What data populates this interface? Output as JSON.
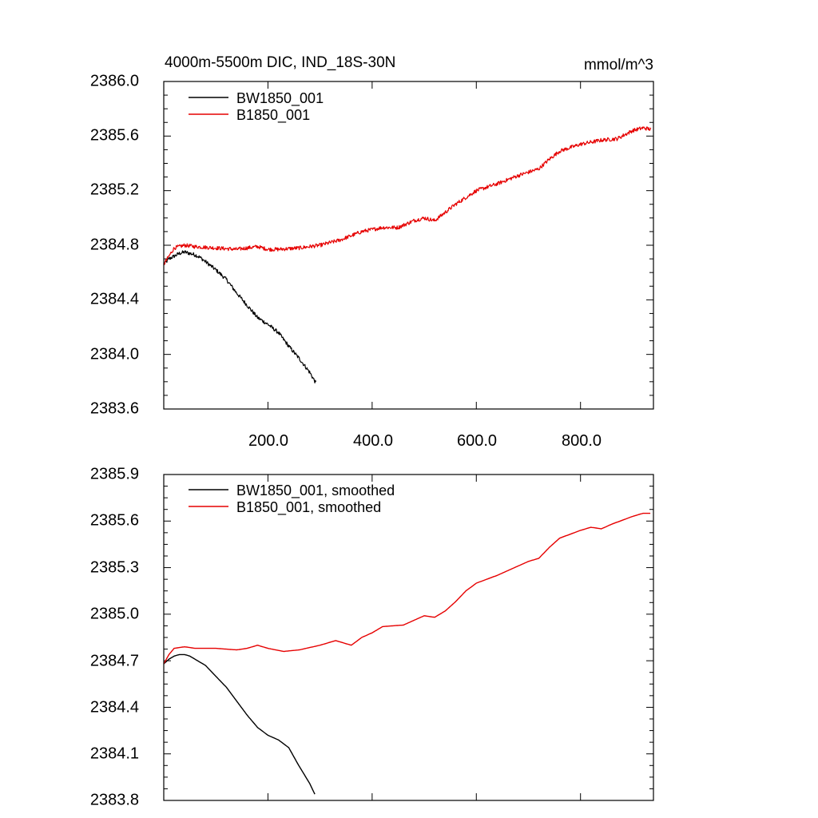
{
  "chart_data": [
    {
      "type": "line",
      "title": "4000m-5500m DIC, IND_18S-30N",
      "units_label": "mmol/m^3",
      "xlabel": "",
      "ylabel": "",
      "xlim": [
        0,
        940
      ],
      "ylim": [
        2383.6,
        2386.0
      ],
      "yticks": [
        2383.6,
        2384.0,
        2384.4,
        2384.8,
        2385.2,
        2385.6,
        2386.0
      ],
      "ytick_labels": [
        "2383.6",
        "2384.0",
        "2384.4",
        "2384.8",
        "2385.2",
        "2385.6",
        "2386.0"
      ],
      "xticks": [
        200,
        400,
        600,
        800
      ],
      "xtick_labels": [
        "200.0",
        "400.0",
        "600.0",
        "800.0"
      ],
      "legend_position": "top-left",
      "series": [
        {
          "name": "BW1850_001",
          "color": "#000000",
          "noisy": true,
          "x": [
            0,
            10,
            20,
            30,
            40,
            50,
            60,
            70,
            80,
            100,
            120,
            140,
            160,
            180,
            200,
            220,
            240,
            260,
            270,
            280,
            292
          ],
          "values": [
            2384.66,
            2384.7,
            2384.72,
            2384.74,
            2384.75,
            2384.74,
            2384.73,
            2384.71,
            2384.68,
            2384.62,
            2384.55,
            2384.45,
            2384.36,
            2384.27,
            2384.22,
            2384.16,
            2384.06,
            2383.97,
            2383.92,
            2383.87,
            2383.79
          ]
        },
        {
          "name": "B1850_001",
          "color": "#e60000",
          "noisy": true,
          "x": [
            0,
            20,
            40,
            60,
            100,
            140,
            180,
            200,
            220,
            260,
            300,
            340,
            380,
            420,
            450,
            480,
            500,
            520,
            560,
            600,
            640,
            680,
            720,
            740,
            760,
            800,
            840,
            870,
            900,
            920,
            935
          ],
          "values": [
            2384.66,
            2384.78,
            2384.8,
            2384.79,
            2384.78,
            2384.77,
            2384.79,
            2384.77,
            2384.77,
            2384.78,
            2384.8,
            2384.84,
            2384.9,
            2384.93,
            2384.93,
            2384.98,
            2385.0,
            2384.98,
            2385.1,
            2385.2,
            2385.25,
            2385.31,
            2385.36,
            2385.43,
            2385.49,
            2385.54,
            2385.57,
            2385.58,
            2385.64,
            2385.66,
            2385.65
          ]
        }
      ]
    },
    {
      "type": "line",
      "title": "",
      "xlabel": "",
      "ylabel": "",
      "xlim": [
        0,
        940
      ],
      "ylim": [
        2383.8,
        2385.9
      ],
      "yticks": [
        2383.8,
        2384.1,
        2384.4,
        2384.7,
        2385.0,
        2385.3,
        2385.6,
        2385.9
      ],
      "ytick_labels": [
        "2383.8",
        "2384.1",
        "2384.4",
        "2384.7",
        "2385.0",
        "2385.3",
        "2385.6",
        "2385.9"
      ],
      "xticks": [
        200,
        400,
        600,
        800
      ],
      "xtick_labels": [],
      "legend_position": "top-left",
      "series": [
        {
          "name": "BW1850_001, smoothed",
          "color": "#000000",
          "noisy": false,
          "x": [
            0,
            10,
            20,
            30,
            40,
            50,
            60,
            80,
            100,
            120,
            140,
            160,
            180,
            200,
            220,
            240,
            260,
            280,
            290
          ],
          "values": [
            2384.68,
            2384.71,
            2384.73,
            2384.74,
            2384.74,
            2384.73,
            2384.71,
            2384.67,
            2384.6,
            2384.53,
            2384.44,
            2384.35,
            2384.27,
            2384.22,
            2384.19,
            2384.14,
            2384.02,
            2383.91,
            2383.84
          ]
        },
        {
          "name": "B1850_001, smoothed",
          "color": "#e60000",
          "noisy": false,
          "x": [
            0,
            10,
            20,
            40,
            60,
            80,
            100,
            140,
            160,
            180,
            200,
            230,
            260,
            300,
            330,
            360,
            380,
            400,
            420,
            460,
            500,
            520,
            540,
            560,
            580,
            600,
            640,
            680,
            700,
            720,
            740,
            760,
            800,
            820,
            840,
            860,
            900,
            920,
            935
          ],
          "values": [
            2384.68,
            2384.74,
            2384.78,
            2384.79,
            2384.78,
            2384.78,
            2384.78,
            2384.77,
            2384.78,
            2384.8,
            2384.78,
            2384.76,
            2384.77,
            2384.8,
            2384.83,
            2384.8,
            2384.85,
            2384.88,
            2384.92,
            2384.93,
            2384.99,
            2384.98,
            2385.02,
            2385.08,
            2385.15,
            2385.2,
            2385.25,
            2385.31,
            2385.34,
            2385.36,
            2385.43,
            2385.49,
            2385.54,
            2385.56,
            2385.55,
            2385.58,
            2385.63,
            2385.65,
            2385.65
          ]
        }
      ]
    }
  ]
}
